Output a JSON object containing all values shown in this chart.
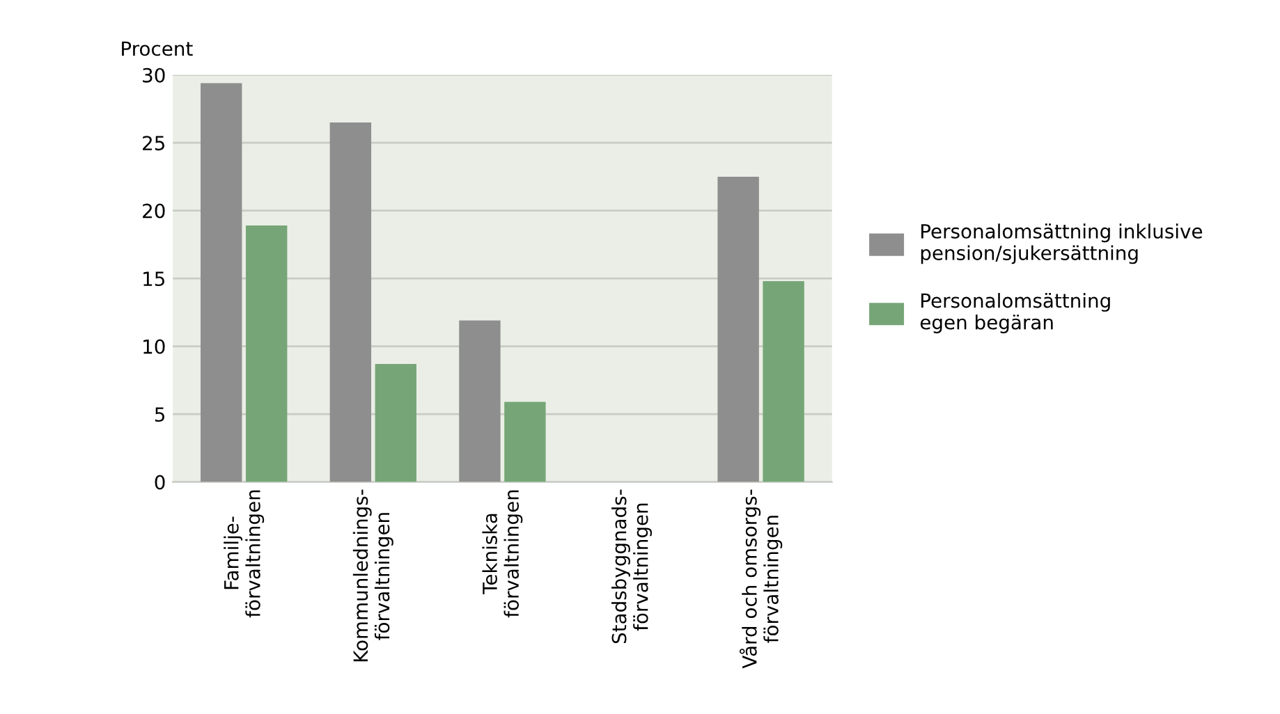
{
  "chart_data": {
    "type": "bar",
    "ylabel": "Procent",
    "categories": [
      "Familje-\nförvaltningen",
      "Kommunlednings-\nförvaltningen",
      "Tekniska\nförvaltningen",
      "Stadsbyggnads-\nförvaltningen",
      "Vård och omsorgs-\nförvaltningen"
    ],
    "series": [
      {
        "name": "Personalomsättning inklusive\npension/sjukersättning",
        "color": "#8e8e8e",
        "values": [
          29.4,
          26.5,
          11.9,
          null,
          22.5
        ]
      },
      {
        "name": "Personalomsättning\negen begäran",
        "color": "#76a677",
        "values": [
          18.9,
          8.7,
          5.9,
          null,
          14.8
        ]
      }
    ],
    "ylim": [
      0,
      30
    ],
    "yticks": [
      0,
      5,
      10,
      15,
      20,
      25,
      30
    ],
    "grid": "y",
    "legend": "right"
  }
}
